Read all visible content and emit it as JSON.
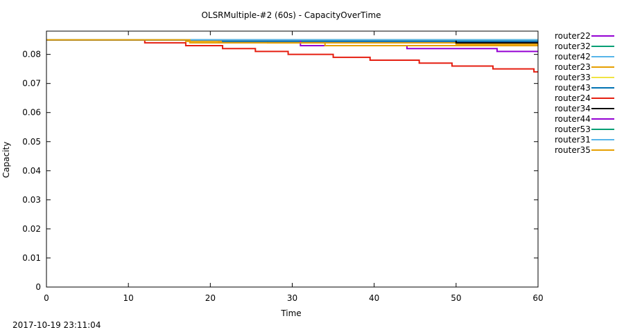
{
  "chart_data": {
    "type": "line",
    "title": "OLSRMultiple-#2 (60s) - CapacityOverTime",
    "xlabel": "Time",
    "ylabel": "Capacity",
    "xlim": [
      0,
      60
    ],
    "ylim": [
      0,
      0.088
    ],
    "xticks": [
      0,
      10,
      20,
      30,
      40,
      50,
      60
    ],
    "yticks": [
      0,
      0.01,
      0.02,
      0.03,
      0.04,
      0.05,
      0.06,
      0.07,
      0.08
    ],
    "grid": false,
    "legend": "outside-right",
    "series": [
      {
        "name": "router22",
        "color": "#9400d3",
        "x": [
          0,
          21.0,
          60
        ],
        "y": [
          0.085,
          0.0845,
          0.0845
        ]
      },
      {
        "name": "router32",
        "color": "#009e73",
        "x": [
          0,
          60
        ],
        "y": [
          0.085,
          0.085
        ]
      },
      {
        "name": "router42",
        "color": "#56b4e9",
        "x": [
          0,
          60
        ],
        "y": [
          0.085,
          0.085
        ]
      },
      {
        "name": "router23",
        "color": "#e69f00",
        "x": [
          0,
          17.0,
          27.0,
          50.0,
          60
        ],
        "y": [
          0.085,
          0.0845,
          0.084,
          0.0835,
          0.0835
        ]
      },
      {
        "name": "router33",
        "color": "#f0e442",
        "x": [
          0,
          60
        ],
        "y": [
          0.085,
          0.085
        ]
      },
      {
        "name": "router43",
        "color": "#0072b2",
        "x": [
          0,
          21.5,
          60
        ],
        "y": [
          0.085,
          0.0845,
          0.0845
        ]
      },
      {
        "name": "router24",
        "color": "#e51e10",
        "x": [
          0,
          12.0,
          17.0,
          21.5,
          25.5,
          29.5,
          35.0,
          39.5,
          45.5,
          49.5,
          54.5,
          59.5,
          60
        ],
        "y": [
          0.085,
          0.084,
          0.083,
          0.082,
          0.081,
          0.08,
          0.079,
          0.078,
          0.077,
          0.076,
          0.075,
          0.074,
          0.074
        ]
      },
      {
        "name": "router34",
        "color": "#000000",
        "x": [
          0,
          50.0,
          60
        ],
        "y": [
          0.085,
          0.084,
          0.084
        ]
      },
      {
        "name": "router44",
        "color": "#9400d3",
        "x": [
          0,
          31.0,
          44.0,
          55.0,
          60
        ],
        "y": [
          0.085,
          0.083,
          0.082,
          0.081,
          0.081
        ]
      },
      {
        "name": "router53",
        "color": "#009e73",
        "x": [
          0,
          60
        ],
        "y": [
          0.085,
          0.085
        ]
      },
      {
        "name": "router31",
        "color": "#56b4e9",
        "x": [
          0,
          60
        ],
        "y": [
          0.085,
          0.085
        ]
      },
      {
        "name": "router35",
        "color": "#e69f00",
        "x": [
          0,
          17.5,
          34.0,
          60
        ],
        "y": [
          0.085,
          0.084,
          0.083,
          0.083
        ]
      }
    ]
  },
  "timestamp": "2017-10-19 23:11:04"
}
